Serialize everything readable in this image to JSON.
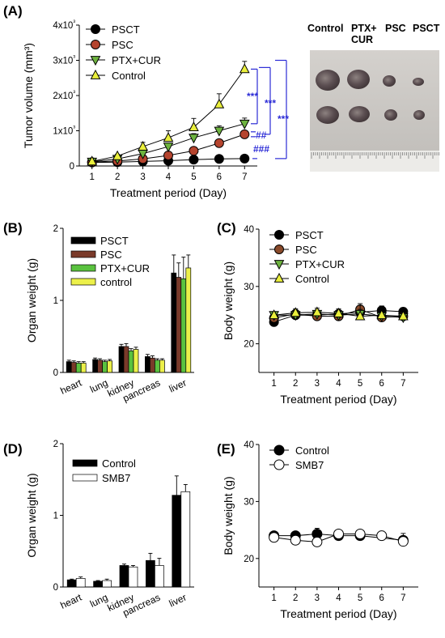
{
  "panels": {
    "A": {
      "label": "(A)",
      "chart_data": {
        "type": "line",
        "xlabel": "Treatment period (Day)",
        "ylabel": "Tumor volume (mm³)",
        "x": [
          1,
          2,
          3,
          4,
          5,
          6,
          7
        ],
        "xlim": [
          0.5,
          7.5
        ],
        "ylim": [
          0,
          4000
        ],
        "yticks": [
          0,
          1000,
          2000,
          3000,
          4000
        ],
        "ytick_labels": [
          "0",
          "1x10³",
          "2x10³",
          "3x10³",
          "4x10³"
        ],
        "legend_position": "top-left",
        "series": [
          {
            "name": "PSCT",
            "marker": "circle",
            "color": "#000000",
            "values": [
              100,
              110,
              130,
              150,
              180,
              200,
              210
            ],
            "errors": [
              20,
              20,
              25,
              25,
              30,
              30,
              30
            ]
          },
          {
            "name": "PSC",
            "marker": "circle",
            "color": "#b5442e",
            "values": [
              110,
              140,
              200,
              300,
              430,
              650,
              900
            ],
            "errors": [
              20,
              25,
              30,
              40,
              60,
              80,
              100
            ]
          },
          {
            "name": "PTX+CUR",
            "marker": "triangle-down",
            "color": "#6db33f",
            "values": [
              120,
              200,
              350,
              550,
              800,
              1000,
              1200
            ],
            "errors": [
              20,
              30,
              60,
              80,
              120,
              140,
              160
            ]
          },
          {
            "name": "Control",
            "marker": "triangle-up",
            "color": "#eaef3c",
            "values": [
              130,
              280,
              550,
              800,
              1100,
              1750,
              2750
            ],
            "errors": [
              30,
              50,
              120,
              200,
              250,
              300,
              220
            ]
          }
        ],
        "annotations": [
          "***",
          "##",
          "###",
          "***",
          "***"
        ],
        "annotation_color": "#2b2bd6"
      },
      "photo": {
        "headers": [
          "Control",
          "PTX+\nCUR",
          "PSC",
          "PSCT"
        ]
      }
    },
    "B": {
      "label": "(B)",
      "chart_data": {
        "type": "bar",
        "ylabel": "Organ weight (g)",
        "categories": [
          "heart",
          "lung",
          "kidney",
          "pancreas",
          "liver"
        ],
        "ylim": [
          0,
          2
        ],
        "yticks": [
          0,
          1,
          2
        ],
        "legend_position": "top-left",
        "series": [
          {
            "name": "PSCT",
            "color": "#000000",
            "values": [
              0.15,
              0.18,
              0.36,
              0.22,
              1.38
            ],
            "errors": [
              0.02,
              0.02,
              0.03,
              0.03,
              0.25
            ]
          },
          {
            "name": "PSC",
            "color": "#7a3a2a",
            "values": [
              0.14,
              0.17,
              0.36,
              0.2,
              1.32
            ],
            "errors": [
              0.02,
              0.02,
              0.04,
              0.03,
              0.2
            ]
          },
          {
            "name": "PTX+CUR",
            "color": "#5ac23f",
            "values": [
              0.13,
              0.15,
              0.3,
              0.17,
              1.3
            ],
            "errors": [
              0.02,
              0.02,
              0.03,
              0.02,
              0.3
            ]
          },
          {
            "name": "control",
            "color": "#ecf04a",
            "values": [
              0.13,
              0.16,
              0.32,
              0.17,
              1.45
            ],
            "errors": [
              0.02,
              0.02,
              0.03,
              0.02,
              0.18
            ]
          }
        ]
      }
    },
    "C": {
      "label": "(C)",
      "chart_data": {
        "type": "line",
        "xlabel": "Treatment period (Day)",
        "ylabel": "Body weight (g)",
        "x": [
          1,
          2,
          3,
          4,
          5,
          6,
          7
        ],
        "xlim": [
          0.3,
          7.7
        ],
        "ylim": [
          15,
          40
        ],
        "yticks": [
          20,
          30,
          40
        ],
        "legend_position": "top-left",
        "series": [
          {
            "name": "PSCT",
            "marker": "circle",
            "color": "#000000",
            "values": [
              23.8,
              25.0,
              25.0,
              25.2,
              25.5,
              25.8,
              25.6
            ],
            "errors": [
              0.5,
              0.6,
              0.6,
              0.6,
              0.8,
              0.8,
              0.7
            ]
          },
          {
            "name": "PSC",
            "marker": "circle",
            "color": "#8a4a2a",
            "values": [
              24.5,
              25.2,
              24.8,
              24.8,
              26.0,
              24.6,
              24.8
            ],
            "errors": [
              0.6,
              0.7,
              0.8,
              0.8,
              1.0,
              1.2,
              0.8
            ]
          },
          {
            "name": "PTX+CUR",
            "marker": "triangle-down",
            "color": "#6db33f",
            "values": [
              25.0,
              25.0,
              25.2,
              25.0,
              25.2,
              24.8,
              24.6
            ],
            "errors": [
              0.6,
              0.8,
              0.7,
              0.8,
              1.5,
              1.0,
              0.8
            ]
          },
          {
            "name": "Control",
            "marker": "triangle-up",
            "color": "#eaef3c",
            "values": [
              25.0,
              25.4,
              25.5,
              25.3,
              24.8,
              25.0,
              24.8
            ],
            "errors": [
              0.6,
              0.7,
              0.7,
              0.8,
              1.2,
              1.5,
              1.0
            ]
          }
        ]
      }
    },
    "D": {
      "label": "(D)",
      "chart_data": {
        "type": "bar",
        "ylabel": "Organ weight (g)",
        "categories": [
          "heart",
          "lung",
          "kidney",
          "pancreas",
          "liver"
        ],
        "ylim": [
          0,
          2
        ],
        "yticks": [
          0,
          1,
          2
        ],
        "legend_position": "top-left",
        "series": [
          {
            "name": "Control",
            "color": "#000000",
            "values": [
              0.1,
              0.08,
              0.3,
              0.37,
              1.28
            ],
            "errors": [
              0.01,
              0.01,
              0.02,
              0.1,
              0.27
            ]
          },
          {
            "name": "SMB7",
            "color": "#ffffff",
            "values": [
              0.12,
              0.09,
              0.28,
              0.3,
              1.33
            ],
            "errors": [
              0.02,
              0.02,
              0.02,
              0.1,
              0.1
            ]
          }
        ]
      }
    },
    "E": {
      "label": "(E)",
      "chart_data": {
        "type": "line",
        "xlabel": "Treatment period (Day)",
        "ylabel": "Body weight (g)",
        "x": [
          1,
          2,
          3,
          4,
          5,
          6,
          7
        ],
        "xlim": [
          0.3,
          7.7
        ],
        "ylim": [
          15,
          40
        ],
        "yticks": [
          20,
          30,
          40
        ],
        "legend_position": "top-left",
        "series": [
          {
            "name": "Control",
            "marker": "circle",
            "fill": "#000000",
            "values": [
              24.0,
              24.0,
              24.3,
              24.0,
              24.0,
              null,
              23.2
            ],
            "errors": [
              0.5,
              0.7,
              1.0,
              0.7,
              0.6,
              null,
              1.2
            ]
          },
          {
            "name": "SMB7",
            "marker": "circle",
            "fill": "#ffffff",
            "values": [
              23.7,
              23.2,
              22.9,
              24.3,
              24.3,
              24.0,
              23.0
            ],
            "errors": [
              0.5,
              0.6,
              0.7,
              0.6,
              0.5,
              0.8,
              0.8
            ]
          }
        ]
      }
    }
  }
}
